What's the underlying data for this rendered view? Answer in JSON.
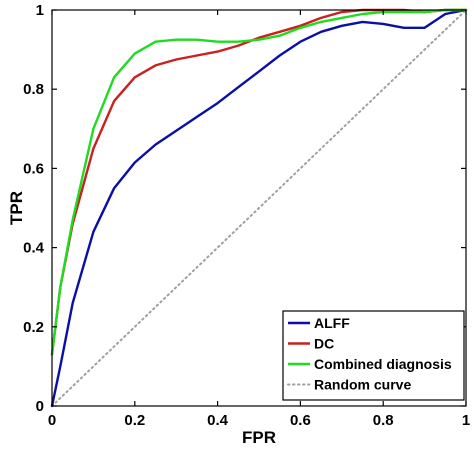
{
  "chart_data": {
    "type": "line",
    "xlabel": "FPR",
    "ylabel": "TPR",
    "xlim": [
      0,
      1
    ],
    "ylim": [
      0,
      1
    ],
    "xticks": [
      "0",
      "0.2",
      "0.4",
      "0.6",
      "0.8",
      "1"
    ],
    "yticks": [
      "0",
      "0.2",
      "0.4",
      "0.6",
      "0.8",
      "1"
    ],
    "grid": false,
    "legend_position": "bottom-right",
    "series": [
      {
        "name": "ALFF",
        "color": "#0b0fa8",
        "dash": "solid",
        "x": [
          0,
          0.02,
          0.05,
          0.1,
          0.15,
          0.2,
          0.25,
          0.3,
          0.35,
          0.4,
          0.45,
          0.5,
          0.55,
          0.6,
          0.65,
          0.7,
          0.75,
          0.8,
          0.85,
          0.9,
          0.95,
          1
        ],
        "y": [
          0,
          0.1,
          0.26,
          0.44,
          0.55,
          0.615,
          0.66,
          0.695,
          0.73,
          0.765,
          0.805,
          0.845,
          0.885,
          0.92,
          0.945,
          0.96,
          0.97,
          0.965,
          0.955,
          0.955,
          0.99,
          1
        ]
      },
      {
        "name": "DC",
        "color": "#cc1f1f",
        "dash": "solid",
        "x": [
          0,
          0.02,
          0.05,
          0.1,
          0.15,
          0.2,
          0.25,
          0.3,
          0.35,
          0.4,
          0.45,
          0.5,
          0.55,
          0.6,
          0.65,
          0.7,
          0.75,
          0.8,
          0.85,
          0.9,
          0.95,
          1
        ],
        "y": [
          0.13,
          0.3,
          0.46,
          0.65,
          0.77,
          0.83,
          0.86,
          0.875,
          0.885,
          0.895,
          0.91,
          0.93,
          0.945,
          0.96,
          0.98,
          0.995,
          1,
          1,
          1,
          0.995,
          1,
          1
        ]
      },
      {
        "name": "Combined diagnosis",
        "color": "#1fdc1f",
        "dash": "solid",
        "x": [
          0,
          0.02,
          0.05,
          0.1,
          0.15,
          0.2,
          0.25,
          0.3,
          0.35,
          0.4,
          0.45,
          0.5,
          0.55,
          0.6,
          0.65,
          0.7,
          0.75,
          0.8,
          0.85,
          0.9,
          0.95,
          1
        ],
        "y": [
          0.13,
          0.3,
          0.47,
          0.7,
          0.83,
          0.89,
          0.92,
          0.925,
          0.925,
          0.92,
          0.92,
          0.925,
          0.935,
          0.955,
          0.97,
          0.98,
          0.99,
          0.995,
          0.995,
          0.995,
          1,
          1
        ]
      },
      {
        "name": "Random curve",
        "color": "#a0a0a0",
        "dash": "dotted",
        "x": [
          0,
          1
        ],
        "y": [
          0,
          1
        ]
      }
    ]
  }
}
